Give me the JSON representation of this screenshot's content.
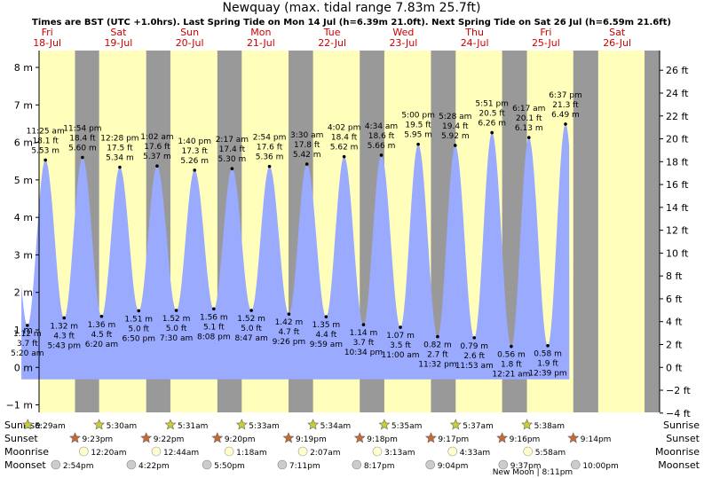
{
  "header": {
    "title": "Newquay (max. tidal range 7.83m 25.7ft)",
    "subtitle": "Times are BST (UTC +1.0hrs). Last Spring Tide on Mon 14 Jul (h=6.39m 21.0ft). Next Spring Tide on Sat 26 Jul (h=6.59m 21.6ft)"
  },
  "colors": {
    "night": "#999999",
    "day": "#ffffbb",
    "tide": "#99aaff",
    "day_label": "#cc0000",
    "sun": "#cccc33",
    "sunset": "#cc6633",
    "moon_light": "#ffffcc",
    "moon_dark": "#cccccc"
  },
  "chart_data": {
    "type": "area",
    "y_left_label_unit": "m",
    "y_right_label_unit": "ft",
    "ylim_m": [
      -1.2,
      8.45
    ],
    "yticks_m": [
      -1,
      0,
      1,
      2,
      3,
      4,
      5,
      6,
      7,
      8
    ],
    "yticks_ft": [
      -4,
      -2,
      0,
      2,
      4,
      6,
      8,
      10,
      12,
      14,
      16,
      18,
      20,
      22,
      24,
      26
    ],
    "days": [
      {
        "dow": "Fri",
        "date": "18-Jul"
      },
      {
        "dow": "Sat",
        "date": "19-Jul"
      },
      {
        "dow": "Sun",
        "date": "20-Jul"
      },
      {
        "dow": "Mon",
        "date": "21-Jul"
      },
      {
        "dow": "Tue",
        "date": "22-Jul"
      },
      {
        "dow": "Wed",
        "date": "23-Jul"
      },
      {
        "dow": "Thu",
        "date": "24-Jul"
      },
      {
        "dow": "Fri",
        "date": "25-Jul"
      },
      {
        "dow": "Sat",
        "date": "26-Jul"
      }
    ],
    "tides": [
      {
        "type": "low",
        "time": "5:20 am",
        "m": 1.12,
        "m_label": "1.12 m",
        "ft": "3.7 ft"
      },
      {
        "type": "high",
        "time": "11:25 am",
        "m": 5.53,
        "m_label": "5.53 m",
        "ft": "18.1 ft"
      },
      {
        "type": "low",
        "time": "5:43 pm",
        "m": 1.32,
        "m_label": "1.32 m",
        "ft": "4.3 ft"
      },
      {
        "type": "high",
        "time": "11:54 pm",
        "m": 5.6,
        "m_label": "5.60 m",
        "ft": "18.4 ft"
      },
      {
        "type": "low",
        "time": "6:20 am",
        "m": 1.36,
        "m_label": "1.36 m",
        "ft": "4.5 ft"
      },
      {
        "type": "high",
        "time": "12:28 pm",
        "m": 5.34,
        "m_label": "5.34 m",
        "ft": "17.5 ft"
      },
      {
        "type": "low",
        "time": "6:50 pm",
        "m": 1.51,
        "m_label": "1.51 m",
        "ft": "5.0 ft"
      },
      {
        "type": "high",
        "time": "1:02 am",
        "m": 5.37,
        "m_label": "5.37 m",
        "ft": "17.6 ft"
      },
      {
        "type": "low",
        "time": "7:30 am",
        "m": 1.52,
        "m_label": "1.52 m",
        "ft": "5.0 ft"
      },
      {
        "type": "high",
        "time": "1:40 pm",
        "m": 5.26,
        "m_label": "5.26 m",
        "ft": "17.3 ft"
      },
      {
        "type": "low",
        "time": "8:08 pm",
        "m": 1.56,
        "m_label": "1.56 m",
        "ft": "5.1 ft"
      },
      {
        "type": "high",
        "time": "2:17 am",
        "m": 5.3,
        "m_label": "5.30 m",
        "ft": "17.4 ft"
      },
      {
        "type": "low",
        "time": "8:47 am",
        "m": 1.52,
        "m_label": "1.52 m",
        "ft": "5.0 ft"
      },
      {
        "type": "high",
        "time": "2:54 pm",
        "m": 5.36,
        "m_label": "5.36 m",
        "ft": "17.6 ft"
      },
      {
        "type": "low",
        "time": "9:26 pm",
        "m": 1.42,
        "m_label": "1.42 m",
        "ft": "4.7 ft"
      },
      {
        "type": "high",
        "time": "3:30 am",
        "m": 5.42,
        "m_label": "5.42 m",
        "ft": "17.8 ft"
      },
      {
        "type": "low",
        "time": "9:59 am",
        "m": 1.35,
        "m_label": "1.35 m",
        "ft": "4.4 ft"
      },
      {
        "type": "high",
        "time": "4:02 pm",
        "m": 5.62,
        "m_label": "5.62 m",
        "ft": "18.4 ft"
      },
      {
        "type": "low",
        "time": "10:34 pm",
        "m": 1.14,
        "m_label": "1.14 m",
        "ft": "3.7 ft"
      },
      {
        "type": "high",
        "time": "4:34 am",
        "m": 5.66,
        "m_label": "5.66 m",
        "ft": "18.6 ft"
      },
      {
        "type": "low",
        "time": "11:00 am",
        "m": 1.07,
        "m_label": "1.07 m",
        "ft": "3.5 ft"
      },
      {
        "type": "high",
        "time": "5:00 pm",
        "m": 5.95,
        "m_label": "5.95 m",
        "ft": "19.5 ft"
      },
      {
        "type": "low",
        "time": "11:32 pm",
        "m": 0.82,
        "m_label": "0.82 m",
        "ft": "2.7 ft"
      },
      {
        "type": "high",
        "time": "5:28 am",
        "m": 5.92,
        "m_label": "5.92 m",
        "ft": "19.4 ft"
      },
      {
        "type": "low",
        "time": "11:53 am",
        "m": 0.79,
        "m_label": "0.79 m",
        "ft": "2.6 ft"
      },
      {
        "type": "high",
        "time": "5:51 pm",
        "m": 6.26,
        "m_label": "6.26 m",
        "ft": "20.5 ft"
      },
      {
        "type": "low",
        "time": "12:21 am",
        "m": 0.56,
        "m_label": "0.56 m",
        "ft": "1.8 ft"
      },
      {
        "type": "high",
        "time": "6:17 am",
        "m": 6.13,
        "m_label": "6.13 m",
        "ft": "20.1 ft"
      },
      {
        "type": "low",
        "time": "12:39 pm",
        "m": 0.58,
        "m_label": "0.58 m",
        "ft": "1.9 ft"
      },
      {
        "type": "high",
        "time": "6:37 pm",
        "m": 6.49,
        "m_label": "6.49 m",
        "ft": "21.3 ft"
      }
    ]
  },
  "astro": {
    "labels": {
      "sunrise": "Sunrise",
      "sunset": "Sunset",
      "moonrise": "Moonrise",
      "moonset": "Moonset"
    },
    "sunrise": [
      "5:29am",
      "5:30am",
      "5:31am",
      "5:33am",
      "5:34am",
      "5:35am",
      "5:37am",
      "5:38am"
    ],
    "sunset": [
      "9:23pm",
      "9:22pm",
      "9:20pm",
      "9:19pm",
      "9:18pm",
      "9:17pm",
      "9:16pm",
      "9:14pm"
    ],
    "moonrise": [
      "12:20am",
      "12:44am",
      "1:18am",
      "2:07am",
      "3:13am",
      "4:33am",
      "5:58am"
    ],
    "moonset": [
      "2:54pm",
      "4:22pm",
      "5:50pm",
      "7:11pm",
      "8:17pm",
      "9:04pm",
      "9:37pm",
      "10:00pm"
    ],
    "moon_phase_note": "New Moon | 8:11pm"
  }
}
